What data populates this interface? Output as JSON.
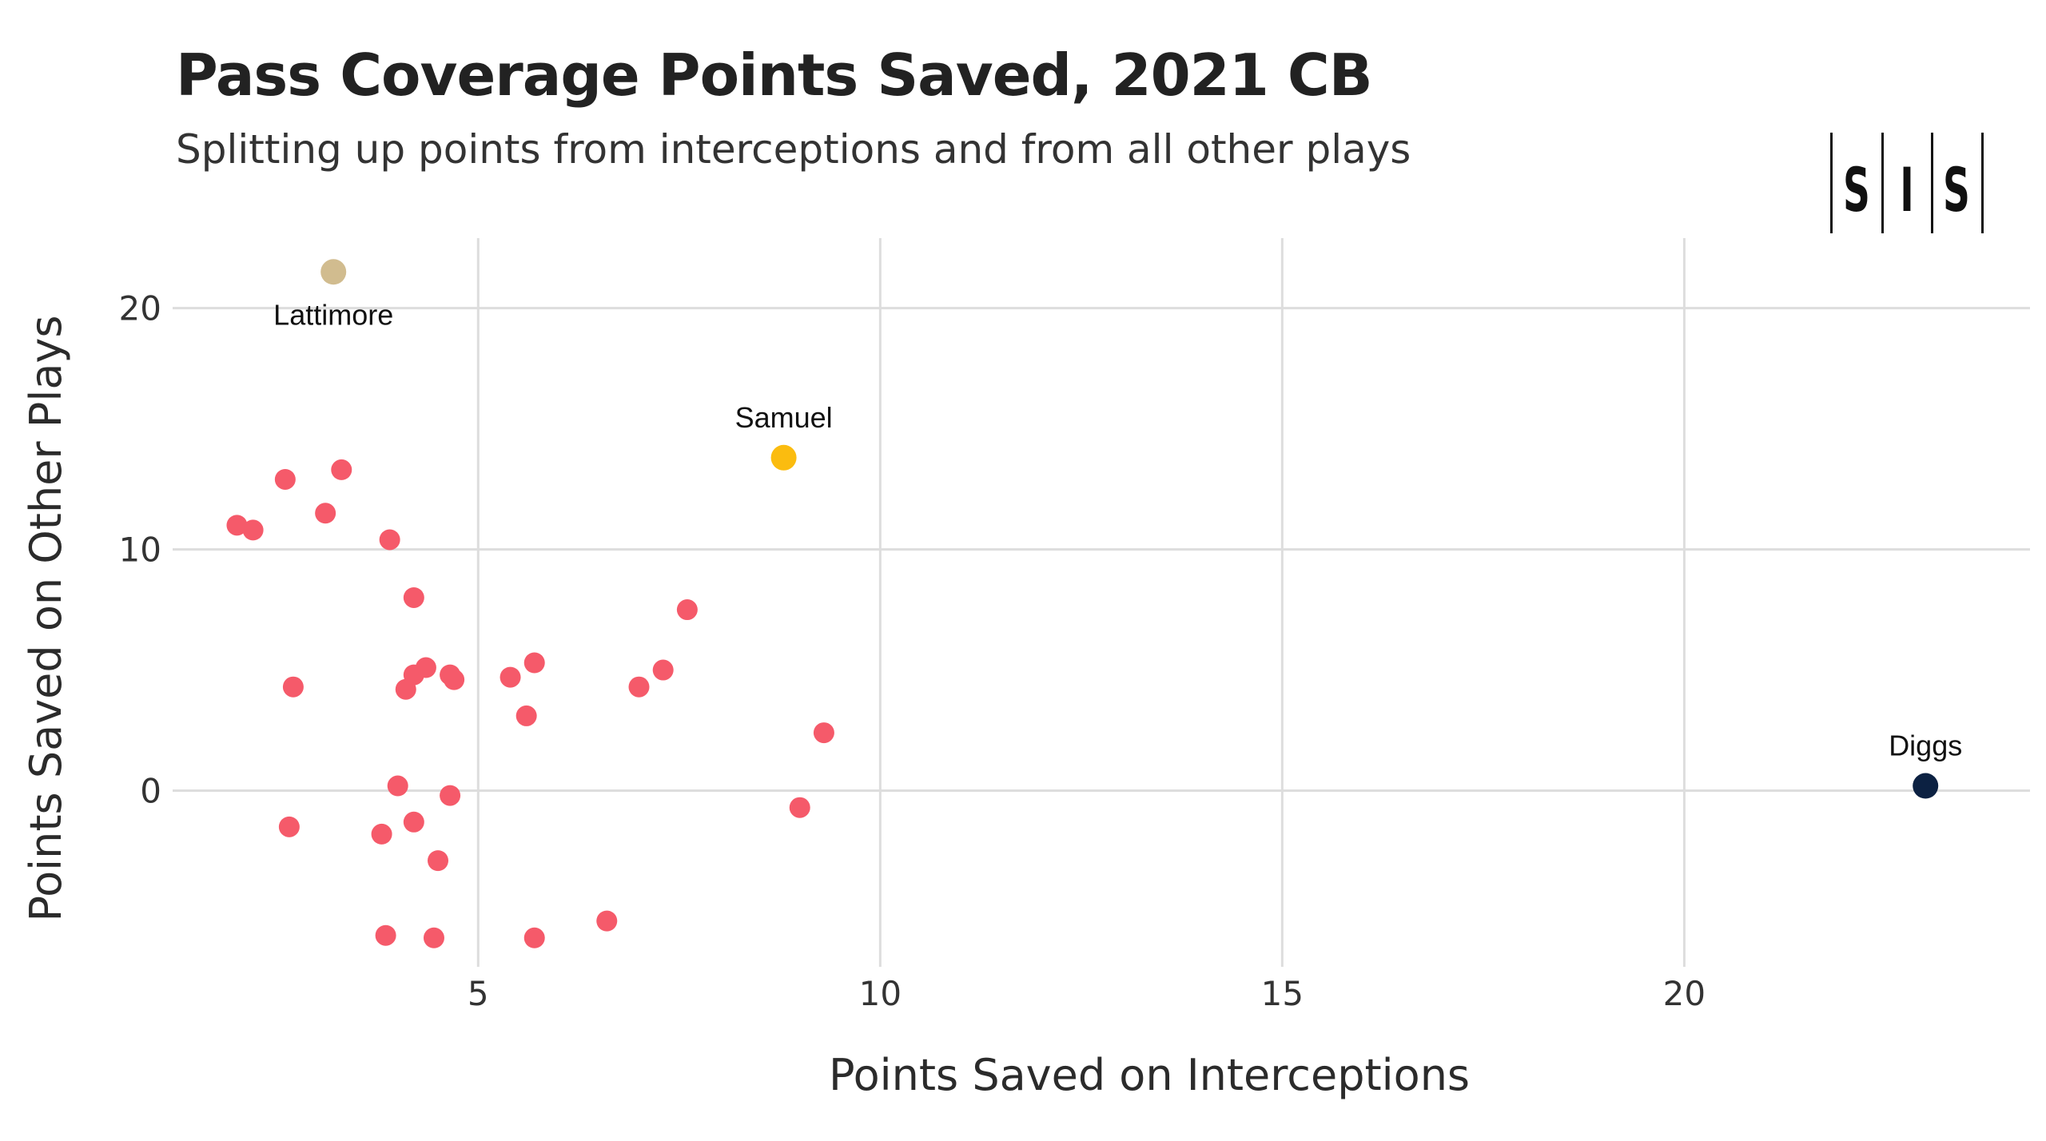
{
  "title": "Pass Coverage Points Saved, 2021 CB",
  "subtitle": "Splitting up points from interceptions and from all other plays",
  "logo_text": "SIS",
  "chart_data": {
    "type": "scatter",
    "title": "Pass Coverage Points Saved, 2021 CB",
    "subtitle": "Splitting up points from interceptions and from all other plays",
    "xlabel": "Points Saved on Interceptions",
    "ylabel": "Points Saved on Other Plays",
    "xlim": [
      1.2,
      24.3
    ],
    "ylim": [
      -7.3,
      22.9
    ],
    "xticks": [
      5,
      10,
      15,
      20
    ],
    "yticks": [
      0,
      10,
      20
    ],
    "grid": true,
    "colors": {
      "default": "#f55a6a",
      "lattimore": "#d1bc8f",
      "samuel": "#fbbc0f",
      "diggs": "#0c2142",
      "grid": "#dddddd"
    },
    "highlighted": [
      {
        "name": "Lattimore",
        "x": 3.2,
        "y": 21.5,
        "color": "#d1bc8f",
        "label_position": "below"
      },
      {
        "name": "Samuel",
        "x": 8.8,
        "y": 13.8,
        "color": "#fbbc0f",
        "label_position": "above"
      },
      {
        "name": "Diggs",
        "x": 23.0,
        "y": 0.2,
        "color": "#0c2142",
        "label_position": "above"
      }
    ],
    "points": [
      {
        "x": 2.0,
        "y": 11.0
      },
      {
        "x": 2.2,
        "y": 10.8
      },
      {
        "x": 2.6,
        "y": 12.9
      },
      {
        "x": 3.3,
        "y": 13.3
      },
      {
        "x": 3.1,
        "y": 11.5
      },
      {
        "x": 3.9,
        "y": 10.4
      },
      {
        "x": 4.2,
        "y": 8.0
      },
      {
        "x": 2.7,
        "y": 4.3
      },
      {
        "x": 4.1,
        "y": 4.2
      },
      {
        "x": 4.2,
        "y": 4.8
      },
      {
        "x": 4.35,
        "y": 5.1
      },
      {
        "x": 4.65,
        "y": 4.8
      },
      {
        "x": 4.7,
        "y": 4.6
      },
      {
        "x": 5.4,
        "y": 4.7
      },
      {
        "x": 5.7,
        "y": 5.3
      },
      {
        "x": 5.6,
        "y": 3.1
      },
      {
        "x": 7.0,
        "y": 4.3
      },
      {
        "x": 7.3,
        "y": 5.0
      },
      {
        "x": 7.6,
        "y": 7.5
      },
      {
        "x": 9.3,
        "y": 2.4
      },
      {
        "x": 4.0,
        "y": 0.2
      },
      {
        "x": 4.65,
        "y": -0.2
      },
      {
        "x": 9.0,
        "y": -0.7
      },
      {
        "x": 2.65,
        "y": -1.5
      },
      {
        "x": 3.8,
        "y": -1.8
      },
      {
        "x": 4.2,
        "y": -1.3
      },
      {
        "x": 4.5,
        "y": -2.9
      },
      {
        "x": 3.85,
        "y": -6.0
      },
      {
        "x": 4.45,
        "y": -6.1
      },
      {
        "x": 5.7,
        "y": -6.1
      },
      {
        "x": 6.6,
        "y": -5.4
      }
    ]
  }
}
